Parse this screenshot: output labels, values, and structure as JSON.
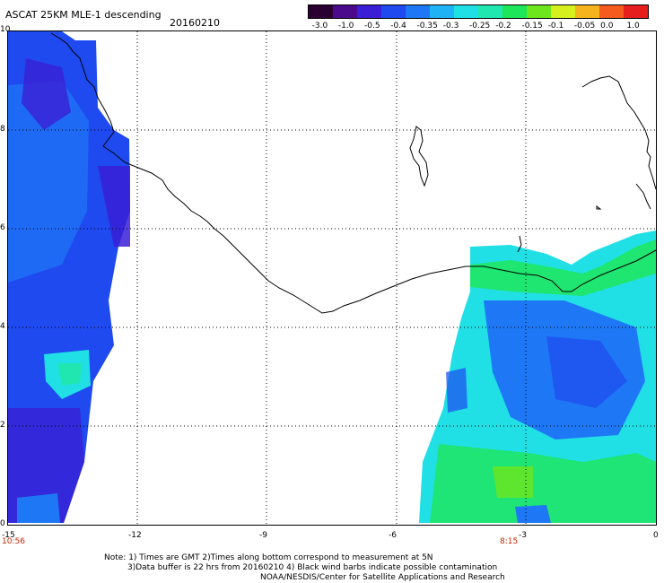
{
  "title": "ASCAT 25KM MLE-1 descending",
  "date": "20160210",
  "colorbar": {
    "labels": [
      "-3.0",
      "-1.0",
      "-0.5",
      "-0.4",
      "-0.35",
      "-0.3",
      "-0.25",
      "-0.2",
      "-0.15",
      "-0.1",
      "-0.05",
      "0.0",
      "1.0"
    ],
    "colors": [
      "#2a0033",
      "#4b0a8c",
      "#3a1fd6",
      "#1f4af0",
      "#1e78f5",
      "#1fb2f5",
      "#20e0e6",
      "#20e6b0",
      "#1ee65a",
      "#6ee61e",
      "#d6f01e",
      "#f5b41e",
      "#f55a1e",
      "#e61e1e"
    ]
  },
  "axes": {
    "lat_ticks": [
      "10",
      "8",
      "6",
      "4",
      "2",
      "0"
    ],
    "lon_ticks": [
      "-15",
      "-12",
      "-9",
      "-6",
      "-3",
      "0"
    ]
  },
  "times": {
    "left": "10:56",
    "right": "8:15"
  },
  "notes": [
    "Note: 1) Times are GMT 2)Times along bottom correspond to measurement at 5N",
    "3)Data buffer is 22 hrs from 20160210 4) Black wind barbs indicate possible contamination",
    "NOAA/NESDIS/Center for Satellite Applications and Research"
  ]
}
